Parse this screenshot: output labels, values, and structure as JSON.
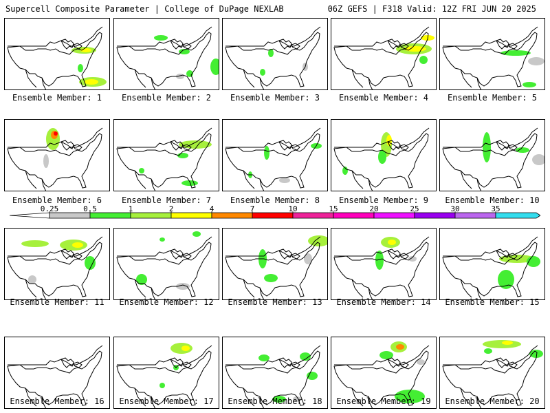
{
  "header": {
    "left": "Supercell Composite Parameter | College of DuPage NEXLAB",
    "right": "06Z GEFS | F318 Valid: 12Z FRI JUN 20 2025"
  },
  "caption_prefix": "Ensemble Member: ",
  "members": [
    "1",
    "2",
    "3",
    "4",
    "5",
    "6",
    "7",
    "8",
    "9",
    "10",
    "11",
    "12",
    "13",
    "14",
    "15",
    "16",
    "17",
    "18",
    "19",
    "20"
  ],
  "colorbar": {
    "ticks": [
      "0.25",
      "0.5",
      "1",
      "2",
      "4",
      "7",
      "10",
      "15",
      "20",
      "25",
      "30",
      "35"
    ],
    "colors": [
      "#c8c8c8",
      "#44ee33",
      "#a6f03c",
      "#ffff00",
      "#ff8800",
      "#ff0000",
      "#ee2299",
      "#ff00bb",
      "#ee11ff",
      "#9900ee",
      "#bb66ee",
      "#33ddee"
    ]
  }
}
